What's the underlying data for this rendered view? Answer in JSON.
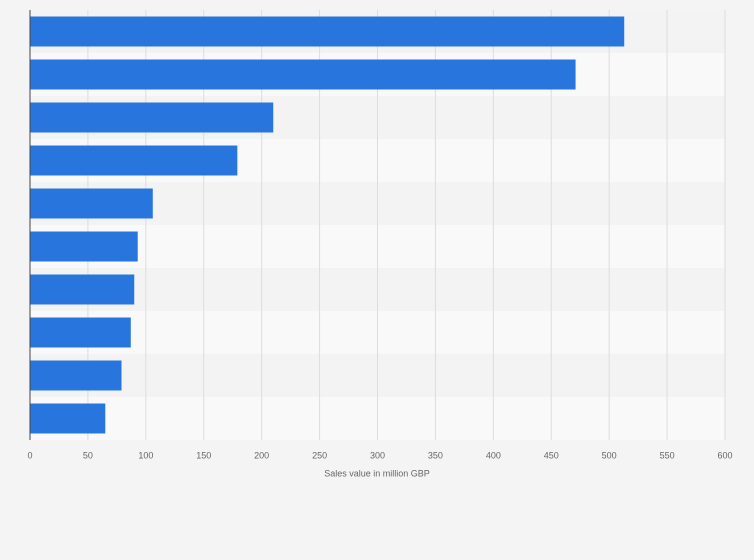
{
  "chart_data": {
    "type": "bar",
    "orientation": "horizontal",
    "categories": [
      null,
      null,
      null,
      null,
      null,
      null,
      null,
      null,
      null,
      null
    ],
    "values": [
      513,
      471,
      210,
      179,
      106,
      93,
      90,
      87,
      79,
      65
    ],
    "color": "#2876dd",
    "x_label": "Sales value in million GBP",
    "xlim": [
      0,
      600
    ],
    "xticks": [
      0,
      50,
      100,
      150,
      200,
      250,
      300,
      350,
      400,
      450,
      500,
      550,
      600
    ],
    "grid": true
  }
}
